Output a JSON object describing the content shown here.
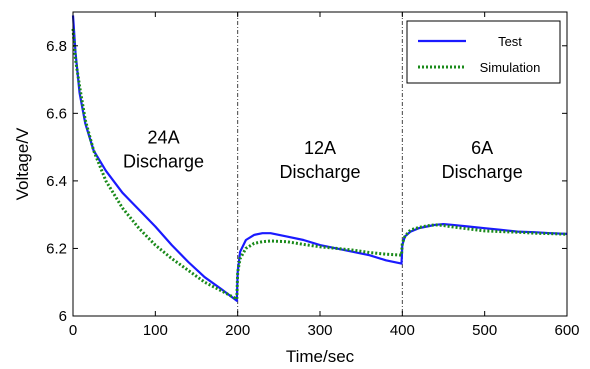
{
  "chart_data": {
    "type": "line",
    "xlabel": "Time/sec",
    "ylabel": "Voltage/V",
    "xlim": [
      0,
      600
    ],
    "ylim": [
      6.0,
      6.9
    ],
    "xticks": [
      "0",
      "100",
      "200",
      "300",
      "400",
      "500",
      "600"
    ],
    "yticks": [
      "6",
      "6.2",
      "6.4",
      "6.6",
      "6.8"
    ],
    "grid": false,
    "legend_position": "top-right",
    "vlines": [
      200,
      400
    ],
    "annotations": [
      {
        "lines": [
          "24A",
          "Discharge"
        ],
        "x": 110,
        "y": 6.51
      },
      {
        "lines": [
          "12A",
          "Discharge"
        ],
        "x": 300,
        "y": 6.48
      },
      {
        "lines": [
          "6A",
          "Discharge"
        ],
        "x": 497,
        "y": 6.48
      }
    ],
    "series": [
      {
        "name": "Test",
        "color": "#1a1aff",
        "style": "solid",
        "x": [
          0,
          3,
          8,
          15,
          25,
          40,
          60,
          80,
          100,
          120,
          140,
          160,
          180,
          199,
          200,
          203,
          210,
          220,
          230,
          240,
          260,
          280,
          300,
          320,
          340,
          360,
          380,
          399,
          400,
          403,
          410,
          420,
          430,
          440,
          450,
          460,
          480,
          500,
          520,
          540,
          560,
          580,
          600
        ],
        "y": [
          6.89,
          6.78,
          6.66,
          6.57,
          6.49,
          6.43,
          6.365,
          6.315,
          6.265,
          6.21,
          6.16,
          6.115,
          6.08,
          6.045,
          6.13,
          6.19,
          6.225,
          6.24,
          6.245,
          6.245,
          6.235,
          6.225,
          6.21,
          6.2,
          6.19,
          6.18,
          6.165,
          6.155,
          6.21,
          6.235,
          6.25,
          6.26,
          6.265,
          6.27,
          6.272,
          6.27,
          6.265,
          6.26,
          6.255,
          6.25,
          6.248,
          6.245,
          6.243
        ]
      },
      {
        "name": "Simulation",
        "color": "#1a8a1a",
        "style": "dotted",
        "x": [
          0,
          3,
          8,
          15,
          25,
          40,
          60,
          80,
          100,
          120,
          140,
          160,
          180,
          199,
          200,
          203,
          210,
          220,
          230,
          240,
          260,
          280,
          300,
          320,
          340,
          360,
          380,
          399,
          400,
          403,
          410,
          420,
          430,
          440,
          450,
          460,
          480,
          500,
          520,
          540,
          560,
          580,
          600
        ],
        "y": [
          6.85,
          6.76,
          6.68,
          6.58,
          6.49,
          6.4,
          6.32,
          6.26,
          6.21,
          6.17,
          6.135,
          6.1,
          6.075,
          6.05,
          6.13,
          6.17,
          6.2,
          6.215,
          6.22,
          6.222,
          6.22,
          6.212,
          6.205,
          6.2,
          6.195,
          6.188,
          6.183,
          6.18,
          6.215,
          6.235,
          6.255,
          6.262,
          6.267,
          6.27,
          6.268,
          6.264,
          6.258,
          6.252,
          6.25,
          6.248,
          6.245,
          6.244,
          6.242
        ]
      }
    ]
  }
}
